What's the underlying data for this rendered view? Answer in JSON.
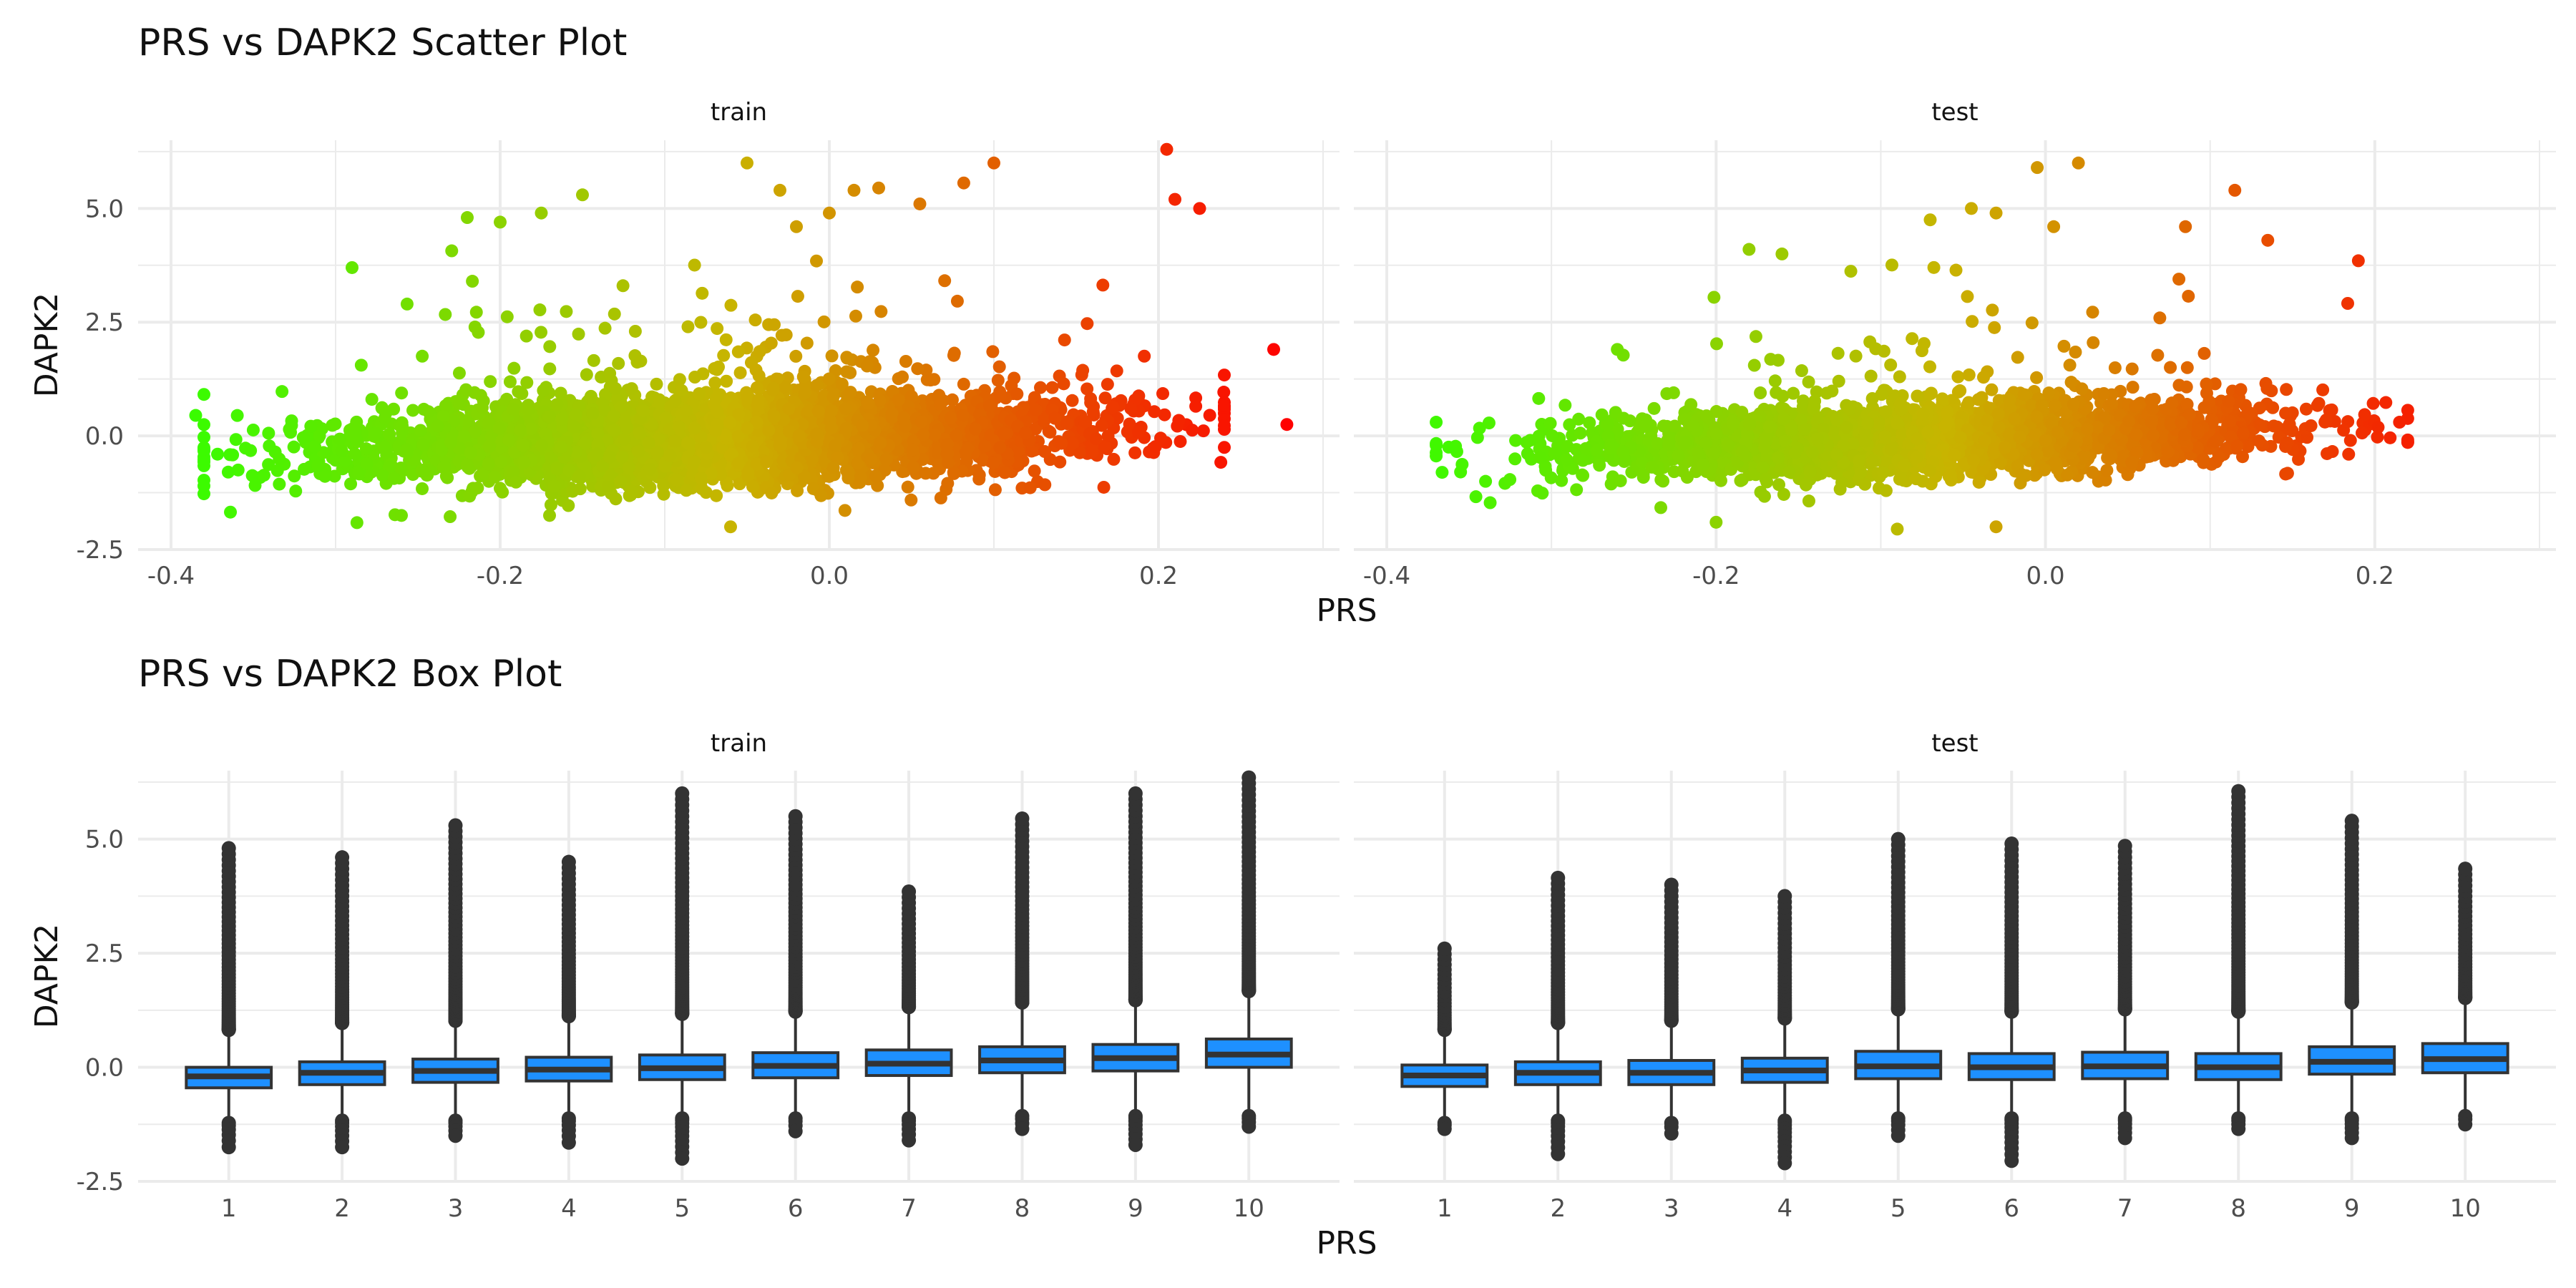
{
  "figure": {
    "scatter_title": "PRS vs DAPK2 Scatter Plot",
    "box_title": "PRS vs DAPK2 Box Plot"
  },
  "colors": {
    "grid": "#ebebeb",
    "axis_text": "#4d4d4d",
    "label_text": "#111111",
    "box_fill": "#1e90ff",
    "box_stroke": "#333333",
    "outlier": "#333333",
    "gradient_low": "#33ff00",
    "gradient_mid": "#c8b400",
    "gradient_high": "#ff0000"
  },
  "chart_data": [
    {
      "type": "scatter",
      "title": "PRS vs DAPK2 Scatter Plot",
      "xlabel": "PRS",
      "ylabel": "DAPK2",
      "facets": [
        "train",
        "test"
      ],
      "xlim": [
        -0.4,
        0.3
      ],
      "ylim": [
        -2.5,
        6.5
      ],
      "x_ticks": [
        -0.4,
        -0.2,
        0.0,
        0.2
      ],
      "x_tick_labels": [
        "-0.4",
        "-0.2",
        "0.0",
        "0.2"
      ],
      "y_ticks": [
        -2.5,
        0.0,
        2.5,
        5.0
      ],
      "y_tick_labels": [
        "-2.5",
        "0.0",
        "2.5",
        "5.0"
      ],
      "color_by": "PRS (gradient green to red)",
      "grid": true,
      "legend": "none",
      "panels": [
        {
          "facet": "train",
          "core_cloud": {
            "x_range": [
              -0.38,
              0.24
            ],
            "y_center": 0.0,
            "y_spread": 0.8,
            "trend_slope": 1.5
          },
          "notable_points": [
            {
              "x": -0.385,
              "y": 0.45
            },
            {
              "x": -0.38,
              "y": -1.1
            },
            {
              "x": -0.29,
              "y": 3.7
            },
            {
              "x": -0.22,
              "y": 4.8
            },
            {
              "x": -0.2,
              "y": 4.7
            },
            {
              "x": -0.175,
              "y": 4.9
            },
            {
              "x": -0.15,
              "y": 5.3
            },
            {
              "x": -0.05,
              "y": 6.0
            },
            {
              "x": -0.03,
              "y": 5.4
            },
            {
              "x": -0.02,
              "y": 4.6
            },
            {
              "x": 0.0,
              "y": 4.9
            },
            {
              "x": 0.015,
              "y": 5.4
            },
            {
              "x": 0.03,
              "y": 5.45
            },
            {
              "x": 0.055,
              "y": 5.1
            },
            {
              "x": 0.1,
              "y": 6.0
            },
            {
              "x": 0.205,
              "y": 6.3
            },
            {
              "x": 0.21,
              "y": 5.2
            },
            {
              "x": 0.225,
              "y": 5.0
            },
            {
              "x": 0.27,
              "y": 1.9
            },
            {
              "x": 0.278,
              "y": 0.25
            },
            {
              "x": -0.06,
              "y": -2.0
            },
            {
              "x": -0.17,
              "y": -1.75
            },
            {
              "x": -0.26,
              "y": -1.75
            }
          ]
        },
        {
          "facet": "test",
          "core_cloud": {
            "x_range": [
              -0.37,
              0.22
            ],
            "y_center": 0.0,
            "y_spread": 0.7,
            "trend_slope": 1.4
          },
          "notable_points": [
            {
              "x": -0.37,
              "y": 0.3
            },
            {
              "x": -0.34,
              "y": -1.0
            },
            {
              "x": -0.26,
              "y": 1.9
            },
            {
              "x": -0.18,
              "y": 4.1
            },
            {
              "x": -0.16,
              "y": 4.0
            },
            {
              "x": -0.07,
              "y": 4.75
            },
            {
              "x": -0.045,
              "y": 5.0
            },
            {
              "x": -0.03,
              "y": 4.9
            },
            {
              "x": -0.005,
              "y": 5.9
            },
            {
              "x": 0.005,
              "y": 4.6
            },
            {
              "x": 0.02,
              "y": 6.0
            },
            {
              "x": 0.085,
              "y": 4.6
            },
            {
              "x": 0.115,
              "y": 5.4
            },
            {
              "x": 0.135,
              "y": 4.3
            },
            {
              "x": 0.19,
              "y": 3.85
            },
            {
              "x": 0.215,
              "y": 0.3
            },
            {
              "x": -0.09,
              "y": -2.05
            },
            {
              "x": -0.03,
              "y": -2.0
            },
            {
              "x": -0.2,
              "y": -1.9
            }
          ]
        }
      ]
    },
    {
      "type": "box",
      "title": "PRS vs DAPK2 Box Plot",
      "xlabel": "PRS",
      "ylabel": "DAPK2",
      "facets": [
        "train",
        "test"
      ],
      "categories": [
        "1",
        "2",
        "3",
        "4",
        "5",
        "6",
        "7",
        "8",
        "9",
        "10"
      ],
      "ylim": [
        -2.5,
        6.5
      ],
      "y_ticks": [
        -2.5,
        0.0,
        2.5,
        5.0
      ],
      "y_tick_labels": [
        "-2.5",
        "0.0",
        "2.5",
        "5.0"
      ],
      "grid": true,
      "legend": "none",
      "panels": [
        {
          "facet": "train",
          "boxes": [
            {
              "q1": -0.45,
              "median": -0.2,
              "q3": 0.0,
              "whisker_low": -1.1,
              "whisker_high": 0.7,
              "outlier_low": -1.75,
              "outlier_high": 4.8
            },
            {
              "q1": -0.38,
              "median": -0.12,
              "q3": 0.12,
              "whisker_low": -1.05,
              "whisker_high": 0.85,
              "outlier_low": -1.75,
              "outlier_high": 4.6
            },
            {
              "q1": -0.33,
              "median": -0.08,
              "q3": 0.18,
              "whisker_low": -1.05,
              "whisker_high": 0.9,
              "outlier_low": -1.5,
              "outlier_high": 5.3
            },
            {
              "q1": -0.3,
              "median": -0.05,
              "q3": 0.22,
              "whisker_low": -1.0,
              "whisker_high": 1.0,
              "outlier_low": -1.65,
              "outlier_high": 4.5
            },
            {
              "q1": -0.27,
              "median": -0.02,
              "q3": 0.27,
              "whisker_low": -1.0,
              "whisker_high": 1.05,
              "outlier_low": -2.0,
              "outlier_high": 6.0
            },
            {
              "q1": -0.23,
              "median": 0.03,
              "q3": 0.32,
              "whisker_low": -1.0,
              "whisker_high": 1.1,
              "outlier_low": -1.4,
              "outlier_high": 5.5
            },
            {
              "q1": -0.18,
              "median": 0.08,
              "q3": 0.38,
              "whisker_low": -1.0,
              "whisker_high": 1.2,
              "outlier_low": -1.6,
              "outlier_high": 3.85
            },
            {
              "q1": -0.12,
              "median": 0.15,
              "q3": 0.45,
              "whisker_low": -0.95,
              "whisker_high": 1.3,
              "outlier_low": -1.35,
              "outlier_high": 5.45
            },
            {
              "q1": -0.08,
              "median": 0.2,
              "q3": 0.5,
              "whisker_low": -0.95,
              "whisker_high": 1.35,
              "outlier_low": -1.7,
              "outlier_high": 6.0
            },
            {
              "q1": 0.0,
              "median": 0.28,
              "q3": 0.62,
              "whisker_low": -0.95,
              "whisker_high": 1.55,
              "outlier_low": -1.3,
              "outlier_high": 6.35
            }
          ]
        },
        {
          "facet": "test",
          "boxes": [
            {
              "q1": -0.42,
              "median": -0.18,
              "q3": 0.05,
              "whisker_low": -1.1,
              "whisker_high": 0.7,
              "outlier_low": -1.35,
              "outlier_high": 2.6
            },
            {
              "q1": -0.38,
              "median": -0.12,
              "q3": 0.12,
              "whisker_low": -1.05,
              "whisker_high": 0.85,
              "outlier_low": -1.9,
              "outlier_high": 4.15
            },
            {
              "q1": -0.38,
              "median": -0.12,
              "q3": 0.15,
              "whisker_low": -1.1,
              "whisker_high": 0.9,
              "outlier_low": -1.45,
              "outlier_high": 4.0
            },
            {
              "q1": -0.33,
              "median": -0.07,
              "q3": 0.2,
              "whisker_low": -1.05,
              "whisker_high": 0.95,
              "outlier_low": -2.1,
              "outlier_high": 3.75
            },
            {
              "q1": -0.25,
              "median": 0.02,
              "q3": 0.35,
              "whisker_low": -1.0,
              "whisker_high": 1.15,
              "outlier_low": -1.5,
              "outlier_high": 5.0
            },
            {
              "q1": -0.27,
              "median": 0.0,
              "q3": 0.3,
              "whisker_low": -1.0,
              "whisker_high": 1.1,
              "outlier_low": -2.05,
              "outlier_high": 4.9
            },
            {
              "q1": -0.25,
              "median": 0.02,
              "q3": 0.33,
              "whisker_low": -1.0,
              "whisker_high": 1.15,
              "outlier_low": -1.55,
              "outlier_high": 4.85
            },
            {
              "q1": -0.27,
              "median": 0.0,
              "q3": 0.3,
              "whisker_low": -1.0,
              "whisker_high": 1.1,
              "outlier_low": -1.35,
              "outlier_high": 6.05
            },
            {
              "q1": -0.15,
              "median": 0.12,
              "q3": 0.45,
              "whisker_low": -1.0,
              "whisker_high": 1.3,
              "outlier_low": -1.55,
              "outlier_high": 5.4
            },
            {
              "q1": -0.12,
              "median": 0.18,
              "q3": 0.52,
              "whisker_low": -0.95,
              "whisker_high": 1.4,
              "outlier_low": -1.25,
              "outlier_high": 4.35
            }
          ]
        }
      ]
    }
  ]
}
